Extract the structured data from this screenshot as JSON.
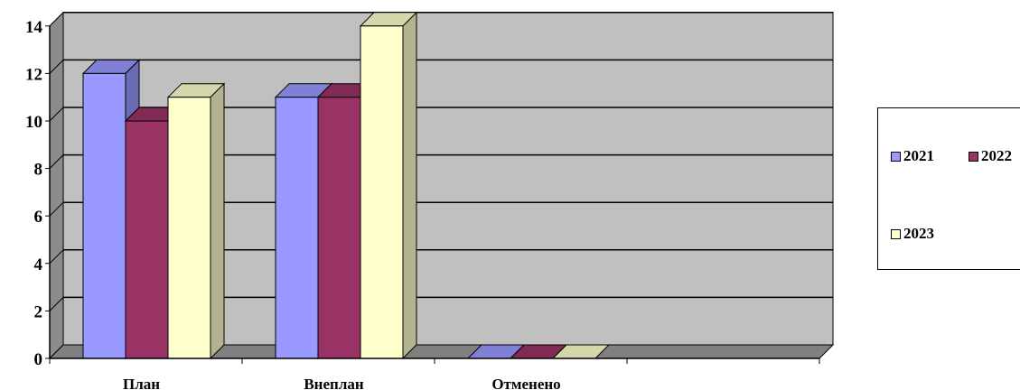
{
  "chart_data": {
    "type": "bar",
    "title": "",
    "xlabel": "",
    "ylabel": "",
    "categories": [
      "План",
      "Внеплан",
      "Отменено"
    ],
    "series": [
      {
        "name": "2021",
        "values": [
          12,
          11,
          0
        ],
        "color": "#9999ff",
        "side_color": "#6b6bb3",
        "top_color": "#8080d6"
      },
      {
        "name": "2022",
        "values": [
          10,
          11,
          0
        ],
        "color": "#993366",
        "side_color": "#6b2447",
        "top_color": "#802a55"
      },
      {
        "name": "2023",
        "values": [
          11,
          14,
          0
        ],
        "color": "#ffffcc",
        "side_color": "#b3b38f",
        "top_color": "#d6d6ab"
      }
    ],
    "ylim": [
      0,
      14
    ],
    "yticks": [
      "0",
      "2",
      "4",
      "6",
      "8",
      "10",
      "12",
      "14"
    ],
    "grid": true,
    "legend_position": "right",
    "wall_color": "#c0c0c0",
    "floor_color": "#808080"
  }
}
